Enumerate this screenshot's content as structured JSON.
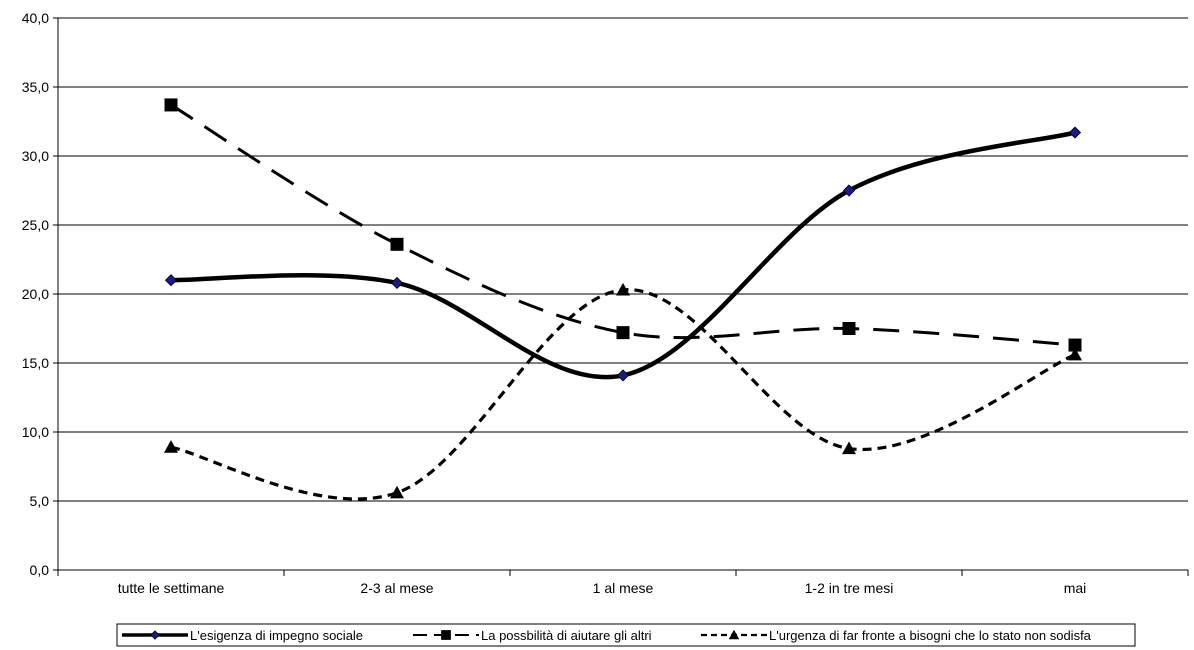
{
  "chart_data": {
    "type": "line",
    "title": "",
    "xlabel": "",
    "ylabel": "",
    "categories": [
      "tutte le settimane",
      "2-3 al mese",
      "1 al mese",
      "1-2 in tre mesi",
      "mai"
    ],
    "ylim": [
      0,
      40
    ],
    "yticks": [
      "0,0",
      "5,0",
      "10,0",
      "15,0",
      "20,0",
      "25,0",
      "30,0",
      "35,0",
      "40,0"
    ],
    "grid": true,
    "legend_position": "bottom",
    "smooth": true,
    "series": [
      {
        "name": "L'esigenza di impegno sociale",
        "values": [
          21.0,
          20.8,
          14.1,
          27.5,
          31.7
        ],
        "color": "#000000",
        "marker": "diamond",
        "marker_color": "#1a1a8c",
        "line_style": "solid"
      },
      {
        "name": "La possbilità di aiutare gli altri",
        "values": [
          33.7,
          23.6,
          17.2,
          17.5,
          16.3
        ],
        "color": "#000000",
        "marker": "square",
        "marker_color": "#000000",
        "line_style": "long-dash"
      },
      {
        "name": "L'urgenza di far fronte a bisogni che lo stato non sodisfa",
        "values": [
          8.9,
          5.6,
          20.3,
          8.8,
          15.6
        ],
        "color": "#000000",
        "marker": "triangle",
        "marker_color": "#000000",
        "line_style": "short-dash"
      }
    ]
  }
}
